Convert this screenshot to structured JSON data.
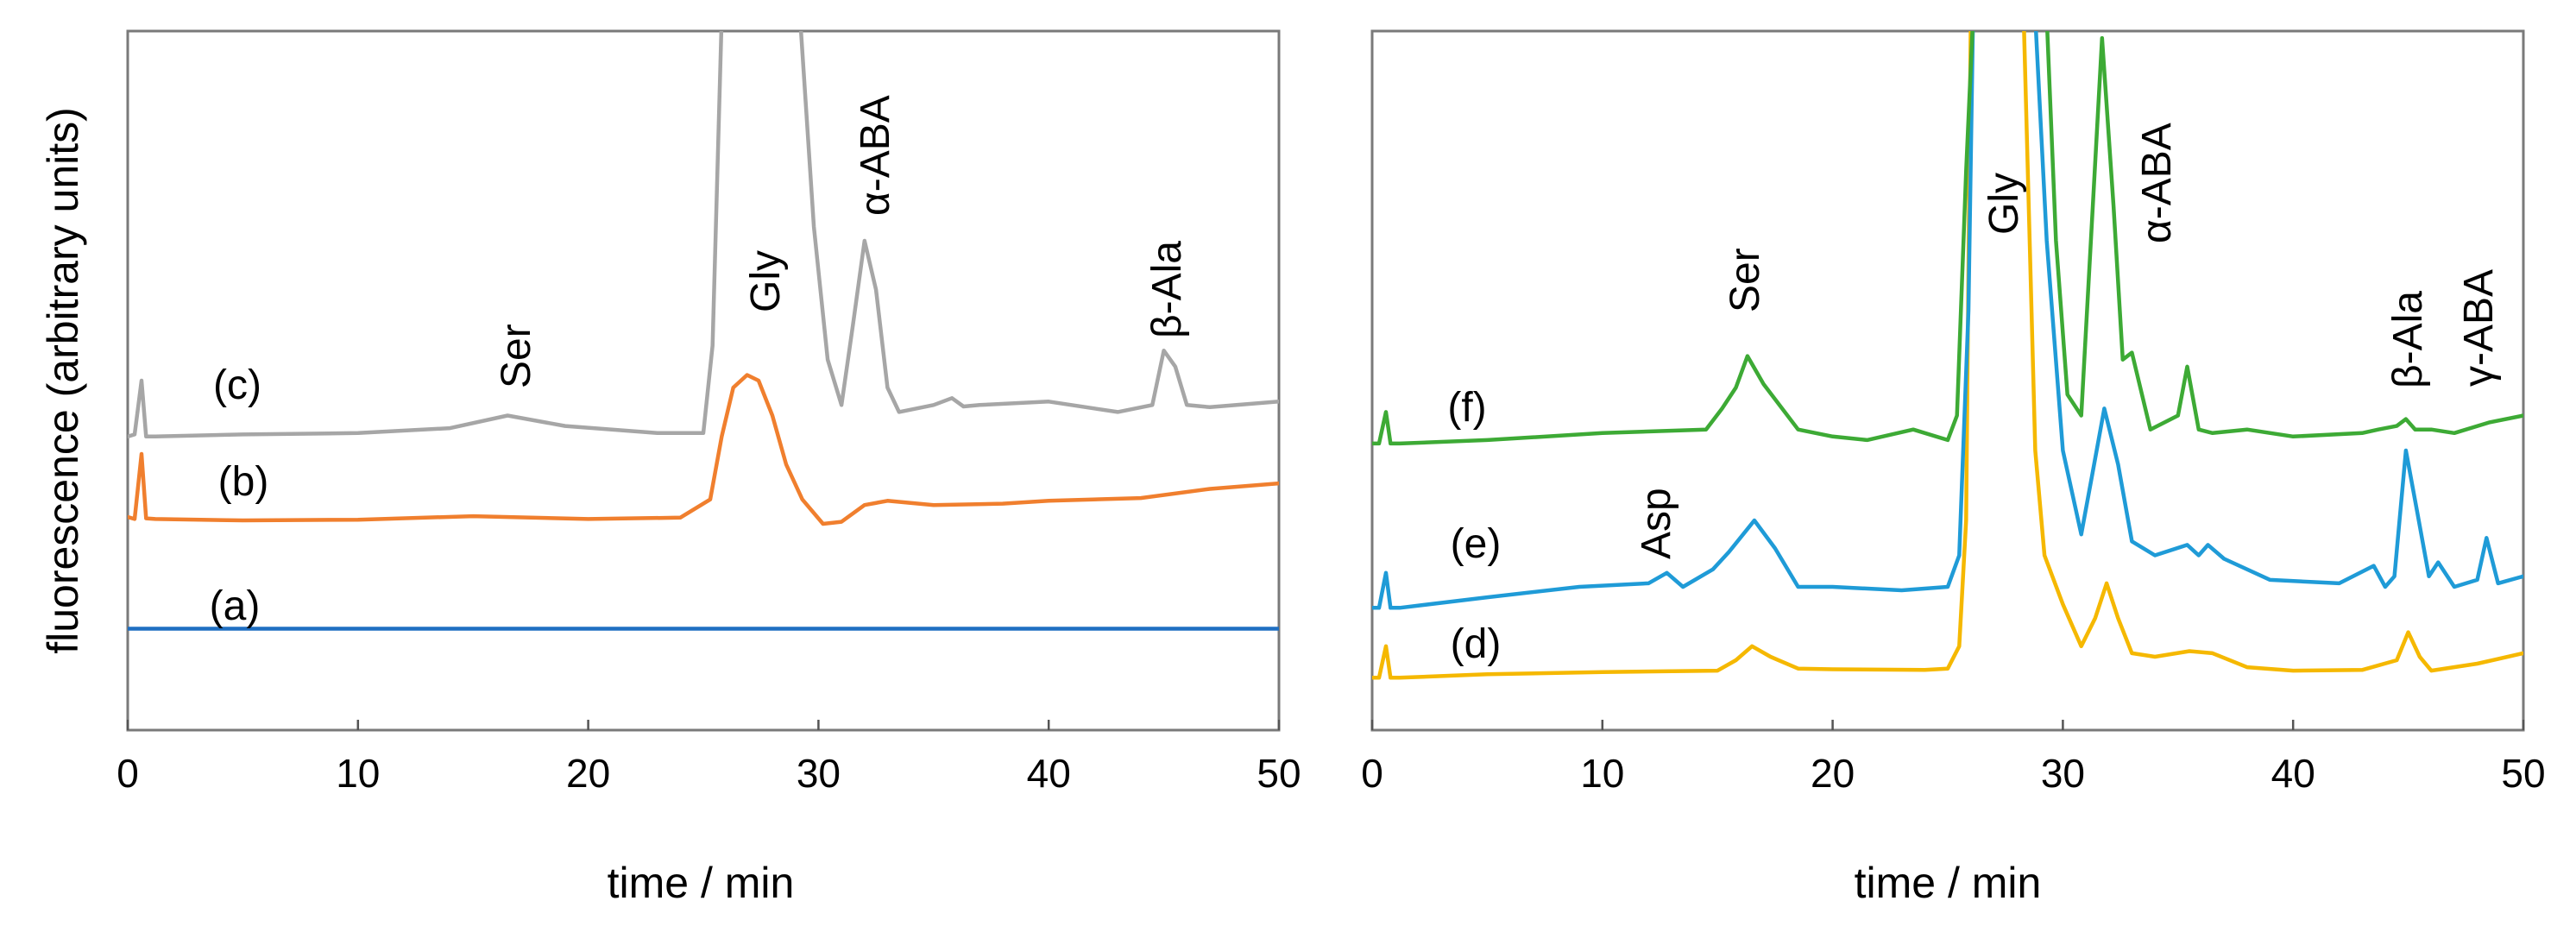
{
  "chart_data": [
    {
      "type": "line",
      "panel": "left",
      "xlabel": "time / min",
      "ylabel": "fluorescence (arbitrary units)",
      "xlim": [
        0,
        50
      ],
      "ylim": [
        0,
        100
      ],
      "x_ticks": [
        0,
        10,
        20,
        30,
        40,
        50
      ],
      "x_tick_labels": [
        "0",
        "10",
        "20",
        "30",
        "40",
        "50"
      ],
      "series": [
        {
          "name": "(a)",
          "color": "#1f6fc2",
          "x": [
            0,
            10,
            20,
            30,
            40,
            50
          ],
          "y": [
            14.5,
            14.5,
            14.5,
            14.5,
            14.5,
            14.5
          ]
        },
        {
          "name": "(b)",
          "color": "#f07f2e",
          "x": [
            0,
            0.3,
            0.6,
            0.8,
            1.2,
            5,
            10,
            15,
            20,
            24,
            25.3,
            25.8,
            26.3,
            26.9,
            27.4,
            28,
            28.6,
            29.3,
            30.2,
            31,
            32,
            33,
            35,
            38,
            40,
            44,
            47,
            50
          ],
          "y": [
            30.5,
            30.2,
            39.5,
            30.3,
            30.2,
            30.0,
            30.1,
            30.6,
            30.2,
            30.4,
            33,
            42,
            49,
            50.8,
            50,
            45,
            38,
            33,
            29.5,
            29.8,
            32.2,
            32.8,
            32.2,
            32.4,
            32.8,
            33.2,
            34.5,
            35.3
          ]
        },
        {
          "name": "(c)",
          "color": "#a6a6a6",
          "x": [
            0,
            0.3,
            0.6,
            0.8,
            1.2,
            5,
            10,
            14,
            16.5,
            19,
            23,
            25,
            25.4,
            25.8,
            26.3,
            26.8,
            28.7,
            29.2,
            29.8,
            30.4,
            31,
            31.5,
            32,
            32.5,
            33,
            33.5,
            35,
            35.8,
            36.3,
            37,
            40,
            43,
            44.5,
            45,
            45.5,
            46,
            47,
            50
          ],
          "y": [
            42,
            42.3,
            50,
            42,
            42,
            42.3,
            42.5,
            43.2,
            45,
            43.5,
            42.5,
            42.5,
            55,
            102,
            102,
            102,
            102,
            102,
            72,
            53,
            46.5,
            58,
            70,
            63,
            49,
            45.5,
            46.5,
            47.5,
            46.3,
            46.5,
            47,
            45.5,
            46.5,
            54.3,
            52,
            46.5,
            46.2,
            47
          ]
        }
      ],
      "trace_labels": [
        "(a)",
        "(b)",
        "(c)"
      ],
      "peak_labels": [
        {
          "text": "Ser",
          "x": 16.8
        },
        {
          "text": "Gly",
          "x": 27.4
        },
        {
          "text": "α-ABA",
          "x": 32.1
        },
        {
          "text": "β-Ala",
          "x": 45.5
        }
      ]
    },
    {
      "type": "line",
      "panel": "right",
      "xlabel": "time / min",
      "xlim": [
        0,
        50
      ],
      "ylim": [
        0,
        100
      ],
      "x_ticks": [
        0,
        10,
        20,
        30,
        40,
        50
      ],
      "x_tick_labels": [
        "0",
        "10",
        "20",
        "30",
        "40",
        "50"
      ],
      "series": [
        {
          "name": "(d)",
          "color": "#f5b800",
          "x": [
            0,
            0.3,
            0.6,
            0.8,
            1.2,
            5,
            10,
            15,
            15.8,
            16.5,
            17.3,
            18.5,
            20,
            24,
            25,
            25.5,
            25.8,
            26,
            28.3,
            28.8,
            29.2,
            30,
            30.8,
            31.4,
            31.9,
            32.4,
            33,
            34,
            35.5,
            36.5,
            38,
            40,
            43,
            44.5,
            45,
            45.5,
            46,
            48,
            50
          ],
          "y": [
            7.5,
            7.5,
            12,
            7.5,
            7.5,
            8,
            8.3,
            8.5,
            10,
            12,
            10.5,
            8.8,
            8.7,
            8.6,
            8.8,
            12,
            30,
            102,
            102,
            40,
            25,
            18,
            12,
            16,
            21,
            16,
            11,
            10.5,
            11.3,
            11,
            9,
            8.5,
            8.6,
            10,
            14,
            10.5,
            8.5,
            9.5,
            11
          ]
        },
        {
          "name": "(e)",
          "color": "#1f9bd7",
          "x": [
            0,
            0.3,
            0.6,
            0.8,
            1.2,
            5,
            9,
            12,
            12.8,
            13.5,
            14.8,
            15.5,
            16.6,
            17.5,
            18.5,
            20,
            23,
            25,
            25.5,
            25.9,
            26.1,
            28.8,
            29.3,
            30,
            30.8,
            31.3,
            31.8,
            32.4,
            33,
            34,
            35.4,
            35.9,
            36.3,
            37,
            39,
            42,
            43.5,
            44,
            44.4,
            44.9,
            45.4,
            45.9,
            46.3,
            47,
            48,
            48.4,
            48.9,
            50
          ],
          "y": [
            17.5,
            17.5,
            22.5,
            17.5,
            17.5,
            19,
            20.5,
            21,
            22.5,
            20.5,
            23,
            25.5,
            30,
            26,
            20.5,
            20.5,
            20,
            20.5,
            25,
            60,
            102,
            102,
            70,
            40,
            28,
            37,
            46,
            38,
            27,
            25,
            26.5,
            25,
            26.5,
            24.5,
            21.5,
            21,
            23.5,
            20.5,
            22,
            40,
            31,
            22,
            24,
            20.5,
            21.5,
            27.5,
            21,
            22
          ]
        },
        {
          "name": "(f)",
          "color": "#3daa35",
          "x": [
            0,
            0.3,
            0.6,
            0.8,
            1.2,
            5,
            10,
            14.5,
            15.2,
            15.8,
            16.3,
            17,
            18.5,
            20,
            21.5,
            23.5,
            25,
            25.4,
            25.8,
            26.1,
            29.3,
            29.7,
            30.2,
            30.8,
            31.3,
            31.7,
            32.2,
            32.6,
            33,
            33.8,
            35,
            35.4,
            35.9,
            36.5,
            38,
            40,
            43,
            43.7,
            44.5,
            44.9,
            45.3,
            46,
            47,
            48.5,
            50
          ],
          "y": [
            41,
            41,
            45.5,
            41,
            41,
            41.5,
            42.5,
            43,
            46,
            49,
            53.5,
            49.5,
            43,
            42,
            41.5,
            43,
            41.5,
            45,
            80,
            102,
            102,
            70,
            48,
            45,
            75,
            99,
            75,
            53,
            54,
            43,
            45,
            52,
            43,
            42.5,
            43,
            42,
            42.5,
            43,
            43.5,
            44.5,
            43,
            43,
            42.5,
            44,
            45
          ]
        }
      ],
      "trace_labels": [
        "(d)",
        "(e)",
        "(f)"
      ],
      "peak_labels": [
        {
          "text": "Asp",
          "x": 12.8
        },
        {
          "text": "Ser",
          "x": 16.6
        },
        {
          "text": "Gly",
          "x": 27.8
        },
        {
          "text": "α-ABA",
          "x": 32.4
        },
        {
          "text": "β-Ala",
          "x": 45.2
        },
        {
          "text": "γ-ABA",
          "x": 48.3
        }
      ]
    }
  ]
}
